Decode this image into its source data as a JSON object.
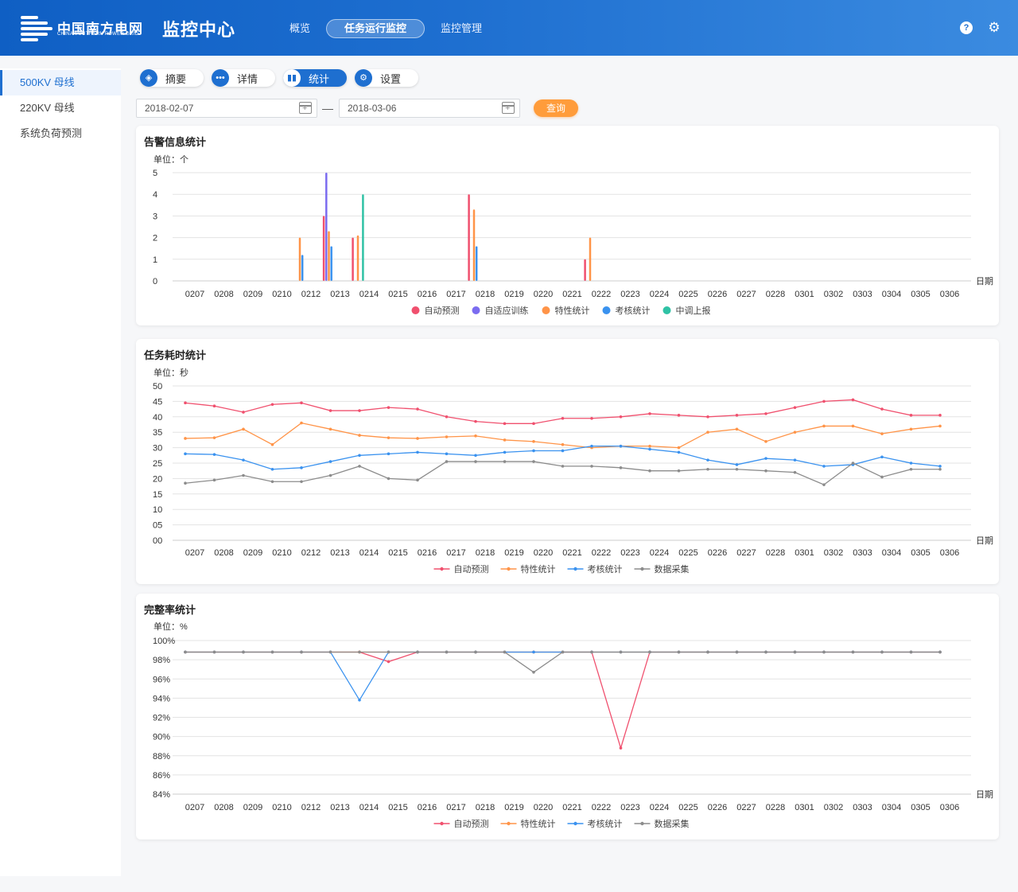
{
  "header": {
    "brand_cn": "中国南方电网",
    "brand_en": "CHINA SOUTHERN POWER GRID",
    "app_title": "监控中心",
    "nav": [
      {
        "label": "概览"
      },
      {
        "label": "任务运行监控",
        "active": true
      },
      {
        "label": "监控管理"
      }
    ],
    "help_icon": "question-icon",
    "settings_icon": "gear-icon"
  },
  "sidebar": {
    "items": [
      {
        "label": "500KV 母线",
        "active": true
      },
      {
        "label": "220KV 母线"
      },
      {
        "label": "系统负荷预测"
      }
    ]
  },
  "tabs": [
    {
      "label": "摘要",
      "icon": "layers-icon"
    },
    {
      "label": "详情",
      "icon": "more-icon"
    },
    {
      "label": "统计",
      "icon": "bar-chart-icon",
      "active": true
    },
    {
      "label": "设置",
      "icon": "gear-icon"
    }
  ],
  "filter": {
    "start_date": "2018-02-07",
    "end_date": "2018-03-06",
    "separator": "—",
    "query_label": "查询"
  },
  "colors": {
    "red": "#f0506e",
    "purple": "#7b6cf0",
    "orange": "#ff9448",
    "blue": "#3a92ef",
    "teal": "#2fc2a5",
    "gray": "#8c8c8c",
    "primary": "#1e6fd0"
  },
  "chart_data": [
    {
      "type": "bar",
      "title": "告警信息统计",
      "unit": "单位：个",
      "xlabel": "日期",
      "ylim": [
        0,
        5
      ],
      "yticks": [
        "0",
        "1",
        "2",
        "3",
        "4",
        "5"
      ],
      "categories": [
        "0207",
        "0208",
        "0209",
        "0210",
        "0212",
        "0213",
        "0214",
        "0215",
        "0216",
        "0217",
        "0218",
        "0219",
        "0220",
        "0221",
        "0222",
        "0223",
        "0224",
        "0225",
        "0226",
        "0227",
        "0228",
        "0301",
        "0302",
        "0303",
        "0304",
        "0305",
        "0306"
      ],
      "series": [
        {
          "name": "自动预测",
          "color": "#f0506e",
          "values": [
            0,
            0,
            0,
            0,
            0,
            3,
            2,
            0,
            0,
            0,
            4,
            0,
            0,
            0,
            1,
            0,
            0,
            0,
            0,
            0,
            0,
            0,
            0,
            0,
            0,
            0,
            0
          ]
        },
        {
          "name": "自适应训练",
          "color": "#7b6cf0",
          "values": [
            0,
            0,
            0,
            0,
            0,
            5,
            0,
            0,
            0,
            0,
            0,
            0,
            0,
            0,
            0,
            0,
            0,
            0,
            0,
            0,
            0,
            0,
            0,
            0,
            0,
            0,
            0
          ]
        },
        {
          "name": "特性统计",
          "color": "#ff9448",
          "values": [
            0,
            0,
            0,
            0,
            2,
            2.3,
            2.1,
            0,
            0,
            0,
            3.3,
            0,
            0,
            0,
            2,
            0,
            0,
            0,
            0,
            0,
            0,
            0,
            0,
            0,
            0,
            0,
            0
          ]
        },
        {
          "name": "考核统计",
          "color": "#3a92ef",
          "values": [
            0,
            0,
            0,
            0,
            1.2,
            1.6,
            0,
            0,
            0,
            0,
            1.6,
            0,
            0,
            0,
            0,
            0,
            0,
            0,
            0,
            0,
            0,
            0,
            0,
            0,
            0,
            0,
            0
          ]
        },
        {
          "name": "中调上报",
          "color": "#2fc2a5",
          "values": [
            0,
            0,
            0,
            0,
            0,
            0,
            4,
            0,
            0,
            0,
            0,
            0,
            0,
            0,
            0,
            0,
            0,
            0,
            0,
            0,
            0,
            0,
            0,
            0,
            0,
            0,
            0
          ]
        }
      ],
      "legend": "bottom"
    },
    {
      "type": "line",
      "title": "任务耗时统计",
      "unit": "单位：秒",
      "xlabel": "日期",
      "ylim": [
        0,
        50
      ],
      "yticks": [
        "00",
        "05",
        "10",
        "15",
        "20",
        "25",
        "30",
        "35",
        "40",
        "45",
        "50"
      ],
      "categories": [
        "0207",
        "0208",
        "0209",
        "0210",
        "0212",
        "0213",
        "0214",
        "0215",
        "0216",
        "0217",
        "0218",
        "0219",
        "0220",
        "0221",
        "0222",
        "0223",
        "0224",
        "0225",
        "0226",
        "0227",
        "0228",
        "0301",
        "0302",
        "0303",
        "0304",
        "0305",
        "0306"
      ],
      "series": [
        {
          "name": "自动预测",
          "color": "#f0506e",
          "values": [
            44.5,
            43.5,
            41.5,
            44,
            44.5,
            42,
            42,
            43,
            42.5,
            40,
            38.5,
            37.8,
            37.8,
            39.5,
            39.5,
            40,
            41,
            40.5,
            40,
            40.5,
            41,
            43,
            45,
            45.5,
            42.5,
            40.5,
            40.5
          ]
        },
        {
          "name": "特性统计",
          "color": "#ff9448",
          "values": [
            33,
            33.2,
            36,
            31,
            38,
            36,
            34,
            33.2,
            33,
            33.5,
            33.8,
            32.5,
            32,
            31,
            30,
            30.5,
            30.5,
            30,
            35,
            36,
            32,
            35,
            37,
            37,
            34.5,
            36,
            37
          ]
        },
        {
          "name": "考核统计",
          "color": "#3a92ef",
          "values": [
            28,
            27.8,
            26,
            23,
            23.5,
            25.5,
            27.5,
            28,
            28.5,
            28,
            27.5,
            28.5,
            29,
            29,
            30.5,
            30.5,
            29.5,
            28.5,
            26,
            24.5,
            26.5,
            26,
            24,
            24.5,
            27,
            25,
            24
          ]
        },
        {
          "name": "数据采集",
          "color": "#8c8c8c",
          "values": [
            18.5,
            19.5,
            21,
            19,
            19,
            21,
            24,
            20,
            19.5,
            25.5,
            25.5,
            25.5,
            25.5,
            24,
            24,
            23.5,
            22.5,
            22.5,
            23,
            23,
            22.5,
            22,
            18,
            25,
            20.5,
            23,
            23
          ]
        }
      ],
      "legend": "bottom"
    },
    {
      "type": "line",
      "title": "完整率统计",
      "unit": "单位：%",
      "xlabel": "日期",
      "ylim": [
        84,
        100
      ],
      "yticks": [
        "84%",
        "86%",
        "88%",
        "90%",
        "92%",
        "94%",
        "96%",
        "98%",
        "100%"
      ],
      "categories": [
        "0207",
        "0208",
        "0209",
        "0210",
        "0212",
        "0213",
        "0214",
        "0215",
        "0216",
        "0217",
        "0218",
        "0219",
        "0220",
        "0221",
        "0222",
        "0223",
        "0224",
        "0225",
        "0226",
        "0227",
        "0228",
        "0301",
        "0302",
        "0303",
        "0304",
        "0305",
        "0306"
      ],
      "series": [
        {
          "name": "自动预测",
          "color": "#f0506e",
          "values": [
            98.8,
            98.8,
            98.8,
            98.8,
            98.8,
            98.8,
            98.8,
            97.8,
            98.8,
            98.8,
            98.8,
            98.8,
            98.8,
            98.8,
            98.8,
            88.8,
            98.8,
            98.8,
            98.8,
            98.8,
            98.8,
            98.8,
            98.8,
            98.8,
            98.8,
            98.8,
            98.8
          ]
        },
        {
          "name": "特性统计",
          "color": "#ff9448",
          "values": [
            98.8,
            98.8,
            98.8,
            98.8,
            98.8,
            98.8,
            98.8,
            98.8,
            98.8,
            98.8,
            98.8,
            98.8,
            98.8,
            98.8,
            98.8,
            98.8,
            98.8,
            98.8,
            98.8,
            98.8,
            98.8,
            98.8,
            98.8,
            98.8,
            98.8,
            98.8,
            98.8
          ]
        },
        {
          "name": "考核统计",
          "color": "#3a92ef",
          "values": [
            98.8,
            98.8,
            98.8,
            98.8,
            98.8,
            98.8,
            93.8,
            98.8,
            98.8,
            98.8,
            98.8,
            98.8,
            98.8,
            98.8,
            98.8,
            98.8,
            98.8,
            98.8,
            98.8,
            98.8,
            98.8,
            98.8,
            98.8,
            98.8,
            98.8,
            98.8,
            98.8
          ]
        },
        {
          "name": "数据采集",
          "color": "#8c8c8c",
          "values": [
            98.8,
            98.8,
            98.8,
            98.8,
            98.8,
            98.8,
            98.8,
            98.8,
            98.8,
            98.8,
            98.8,
            98.8,
            96.7,
            98.8,
            98.8,
            98.8,
            98.8,
            98.8,
            98.8,
            98.8,
            98.8,
            98.8,
            98.8,
            98.8,
            98.8,
            98.8,
            98.8
          ]
        }
      ],
      "legend": "bottom"
    }
  ]
}
